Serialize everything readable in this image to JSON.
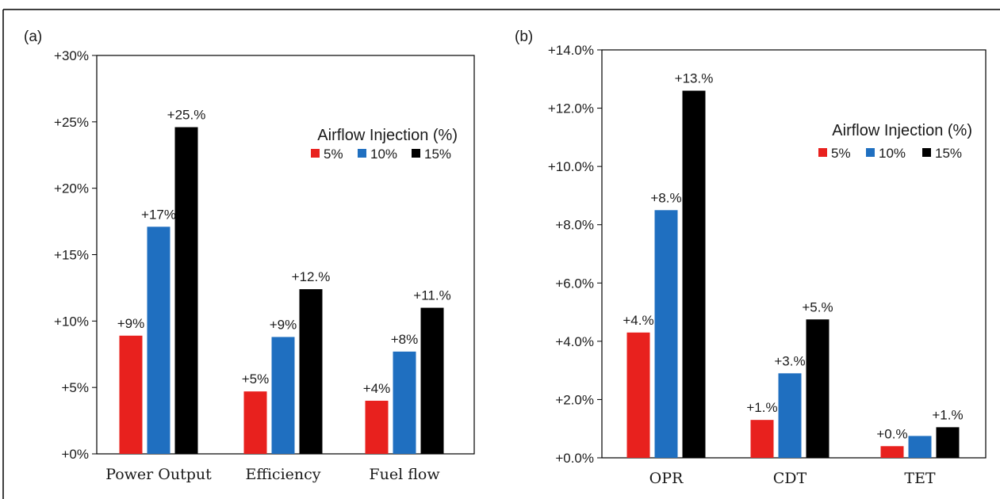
{
  "chart_data": [
    {
      "panel_label": "(a)",
      "type": "bar",
      "categories": [
        "Power Output",
        "Efficiency",
        "Fuel flow"
      ],
      "yticks": [
        "+0%",
        "+5%",
        "+10%",
        "+15%",
        "+20%",
        "+25%",
        "+30%"
      ],
      "ylim": [
        0,
        30
      ],
      "legend": {
        "title": "Airflow Injection (%)",
        "placement": "top-right"
      },
      "series": [
        {
          "name": "5%",
          "color": "#e8211e",
          "values": [
            8.9,
            4.7,
            4.0
          ],
          "labels": [
            "+9%",
            "+5%",
            "+4%"
          ]
        },
        {
          "name": "10%",
          "color": "#1f6fc0",
          "values": [
            17.1,
            8.8,
            7.7
          ],
          "labels": [
            "+17%",
            "+9%",
            "+8%"
          ]
        },
        {
          "name": "15%",
          "color": "#000000",
          "values": [
            24.6,
            12.4,
            11.0
          ],
          "labels": [
            "+25.%",
            "+12.%",
            "+11.%"
          ]
        }
      ]
    },
    {
      "panel_label": "(b)",
      "type": "bar",
      "categories": [
        "OPR",
        "CDT",
        "TET"
      ],
      "yticks": [
        "+0.0%",
        "+2.0%",
        "+4.0%",
        "+6.0%",
        "+8.0%",
        "+10.0%",
        "+12.0%",
        "+14.0%"
      ],
      "ylim": [
        0,
        14
      ],
      "legend": {
        "title": "Airflow Injection (%)",
        "placement": "top-right"
      },
      "series": [
        {
          "name": "5%",
          "color": "#e8211e",
          "values": [
            4.3,
            1.3,
            0.4
          ],
          "labels": [
            "+4.%",
            "+1.%",
            "+0.%"
          ]
        },
        {
          "name": "10%",
          "color": "#1f6fc0",
          "values": [
            8.5,
            2.9,
            0.75
          ],
          "labels": [
            "+8.%",
            "+3.%",
            ""
          ]
        },
        {
          "name": "15%",
          "color": "#000000",
          "values": [
            12.6,
            4.75,
            1.05
          ],
          "labels": [
            "+13.%",
            "+5.%",
            "+1.%"
          ]
        }
      ]
    }
  ]
}
